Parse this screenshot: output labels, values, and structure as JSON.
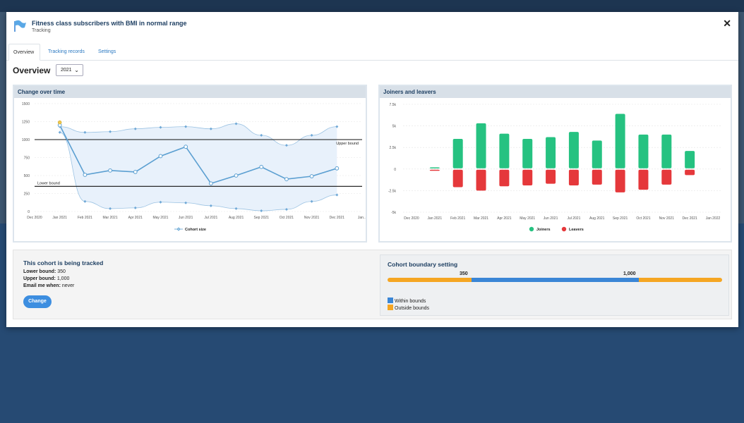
{
  "modal": {
    "title": "Fitness class subscribers with BMI in normal range",
    "subtitle": "Tracking",
    "close_icon": "close-icon",
    "flag_icon": "flag-icon"
  },
  "tabs": [
    {
      "label": "Overview",
      "active": true
    },
    {
      "label": "Tracking records",
      "active": false
    },
    {
      "label": "Settings",
      "active": false
    }
  ],
  "overview": {
    "title": "Overview",
    "year": "2021"
  },
  "colors": {
    "accent": "#2b79c2",
    "joiners": "#26c281",
    "leavers": "#e5383b",
    "within": "#3a86d6",
    "outside": "#f5a623",
    "band": "#e8f1fb",
    "line": "#5b9fd1"
  },
  "chart_data": [
    {
      "type": "line",
      "title": "Change over time",
      "categories": [
        "Dec 2020",
        "Jan 2021",
        "Feb 2021",
        "Mar 2021",
        "Apr 2021",
        "May 2021",
        "Jun 2021",
        "Jul 2021",
        "Aug 2021",
        "Sep 2021",
        "Oct 2021",
        "Nov 2021",
        "Dec 2021",
        "Jan..."
      ],
      "y_ticks": [
        "0",
        "250",
        "500",
        "750",
        "1000",
        "1250",
        "1500"
      ],
      "ylim": [
        0,
        1500
      ],
      "series": [
        {
          "name": "Cohort size",
          "values": [
            null,
            1200,
            510,
            570,
            550,
            770,
            900,
            390,
            500,
            620,
            450,
            490,
            600,
            null
          ]
        }
      ],
      "upper_envelope": [
        null,
        1180,
        1100,
        1110,
        1150,
        1170,
        1180,
        1150,
        1220,
        1060,
        920,
        1060,
        1180,
        null
      ],
      "lower_envelope": [
        null,
        1100,
        140,
        40,
        50,
        130,
        120,
        80,
        40,
        10,
        30,
        140,
        230,
        null
      ],
      "upper_bound": {
        "value": 1000,
        "label": "Upper bound"
      },
      "lower_bound": {
        "value": 350,
        "label": "Lower bound"
      },
      "legend": {
        "label": "Cohort size",
        "position": "bottom"
      }
    },
    {
      "type": "bar",
      "title": "Joiners and leavers",
      "categories": [
        "Dec 2020",
        "Jan 2021",
        "Feb 2021",
        "Mar 2021",
        "Apr 2021",
        "May 2021",
        "Jun 2021",
        "Jul 2021",
        "Aug 2021",
        "Sep 2021",
        "Oct 2021",
        "Nov 2021",
        "Dec 2021",
        "Jan 2022"
      ],
      "y_ticks": [
        "-5k",
        "-2.5k",
        "0",
        "2.5k",
        "5k",
        "7.5k"
      ],
      "ylim": [
        -5000,
        7500
      ],
      "series": [
        {
          "name": "Joiners",
          "values": [
            null,
            200,
            3500,
            5300,
            4100,
            3500,
            3700,
            4300,
            3300,
            6400,
            4000,
            4000,
            2100,
            null
          ]
        },
        {
          "name": "Leavers",
          "values": [
            null,
            -200,
            -2100,
            -2500,
            -2000,
            -1900,
            -1700,
            -1900,
            -1800,
            -2700,
            -2400,
            -1800,
            -700,
            null
          ]
        }
      ],
      "legend": {
        "position": "bottom"
      }
    }
  ],
  "tracking": {
    "title": "This cohort is being tracked",
    "lower_label": "Lower bound:",
    "lower_value": "350",
    "upper_label": "Upper bound:",
    "upper_value": "1,000",
    "email_label": "Email me when:",
    "email_value": "never",
    "change_label": "Change"
  },
  "boundary": {
    "title": "Cohort boundary setting",
    "lower": "350",
    "upper": "1,000",
    "segments": [
      0.25,
      0.5,
      0.25
    ],
    "within_label": "Within bounds",
    "outside_label": "Outside bounds"
  }
}
